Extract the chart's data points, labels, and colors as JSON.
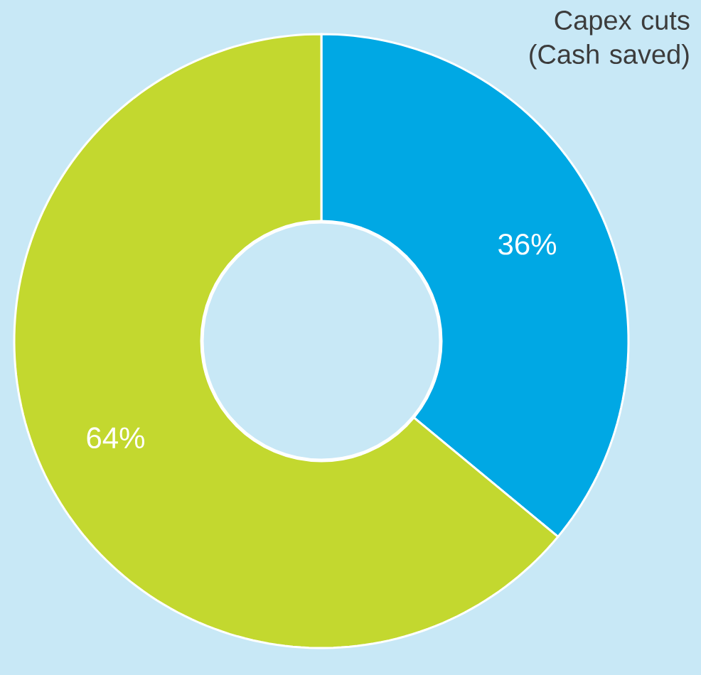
{
  "chart_data": {
    "type": "donut",
    "categories": [
      "Capex cuts (Cash saved)",
      null
    ],
    "values": [
      36,
      64
    ],
    "colors": [
      "#00a8e4",
      "#c3d82f"
    ],
    "value_labels": [
      "36%",
      "64%"
    ]
  }
}
